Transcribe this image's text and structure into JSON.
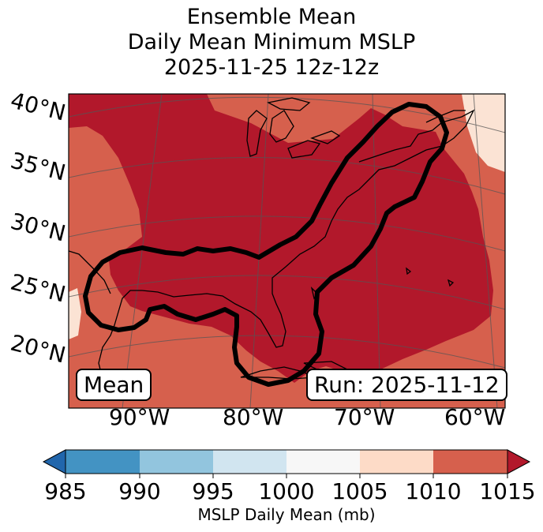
{
  "title": {
    "line1": "Ensemble Mean",
    "line2": "Daily Mean Minimum MSLP",
    "line3": "2025-11-25 12z-12z"
  },
  "map": {
    "lat_labels": [
      "40°N",
      "35°N",
      "30°N",
      "25°N",
      "20°N"
    ],
    "lon_labels": [
      "90°W",
      "80°W",
      "70°W",
      "60°W"
    ],
    "mean_box": "Mean",
    "run_box": "Run: 2025-11-12"
  },
  "colorbar": {
    "ticks": [
      "985",
      "990",
      "995",
      "1000",
      "1005",
      "1010",
      "1015"
    ],
    "label": "MSLP Daily Mean (mb)",
    "colors": [
      "#2166ac",
      "#4393c3",
      "#92c5de",
      "#d1e5f0",
      "#f7f7f7",
      "#fddbc7",
      "#d6604d",
      "#b2182b"
    ]
  },
  "fill_colors": {
    "lt_1005": "#fbe3d4",
    "lt_1010": "#d6604d",
    "lt_1015": "#b2182b"
  }
}
